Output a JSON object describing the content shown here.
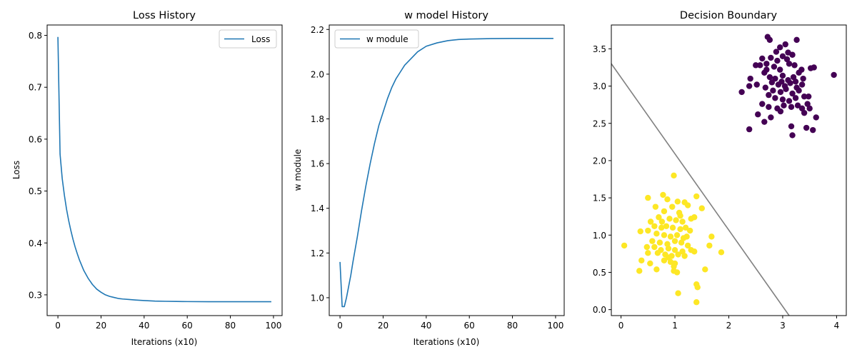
{
  "chart_data": [
    {
      "type": "line",
      "title": "Loss History",
      "xlabel": "Iterations (x10)",
      "ylabel": "Loss",
      "xlim": [
        -5,
        104
      ],
      "ylim": [
        0.26,
        0.82
      ],
      "xticks": [
        0,
        20,
        40,
        60,
        80,
        100
      ],
      "xtick_labels": [
        "0",
        "20",
        "40",
        "60",
        "80",
        "100"
      ],
      "yticks": [
        0.3,
        0.4,
        0.5,
        0.6,
        0.7,
        0.8
      ],
      "ytick_labels": [
        "0.3",
        "0.4",
        "0.5",
        "0.6",
        "0.7",
        "0.8"
      ],
      "grid": false,
      "legend_position": "upper right",
      "series": [
        {
          "name": "Loss",
          "color": "#1f77b4",
          "x": [
            0,
            1,
            2,
            3,
            4,
            5,
            6,
            7,
            8,
            9,
            10,
            12,
            14,
            16,
            18,
            20,
            22,
            24,
            26,
            28,
            30,
            33,
            36,
            40,
            45,
            50,
            55,
            60,
            70,
            80,
            90,
            99
          ],
          "y": [
            0.797,
            0.571,
            0.524,
            0.492,
            0.465,
            0.443,
            0.424,
            0.407,
            0.392,
            0.379,
            0.367,
            0.347,
            0.332,
            0.32,
            0.311,
            0.305,
            0.3,
            0.297,
            0.295,
            0.293,
            0.292,
            0.291,
            0.29,
            0.289,
            0.288,
            0.2875,
            0.2872,
            0.287,
            0.2868,
            0.2867,
            0.2867,
            0.2867
          ]
        }
      ]
    },
    {
      "type": "line",
      "title": "w model History",
      "xlabel": "Iterations (x10)",
      "ylabel": "w module",
      "xlim": [
        -5,
        104
      ],
      "ylim": [
        0.92,
        2.22
      ],
      "xticks": [
        0,
        20,
        40,
        60,
        80,
        100
      ],
      "xtick_labels": [
        "0",
        "20",
        "40",
        "60",
        "80",
        "100"
      ],
      "yticks": [
        1.0,
        1.2,
        1.4,
        1.6,
        1.8,
        2.0,
        2.2
      ],
      "ytick_labels": [
        "1.0",
        "1.2",
        "1.4",
        "1.6",
        "1.8",
        "2.0",
        "2.2"
      ],
      "grid": false,
      "legend_position": "upper left",
      "series": [
        {
          "name": "w module",
          "color": "#1f77b4",
          "x": [
            0,
            1,
            2,
            3,
            4,
            5,
            6,
            8,
            10,
            12,
            14,
            16,
            18,
            20,
            22,
            24,
            26,
            28,
            30,
            33,
            36,
            40,
            45,
            50,
            55,
            60,
            70,
            80,
            90,
            99
          ],
          "y": [
            1.16,
            0.96,
            0.96,
            1.0,
            1.05,
            1.1,
            1.16,
            1.27,
            1.39,
            1.5,
            1.6,
            1.69,
            1.77,
            1.83,
            1.89,
            1.94,
            1.98,
            2.01,
            2.04,
            2.07,
            2.1,
            2.125,
            2.14,
            2.15,
            2.155,
            2.157,
            2.159,
            2.16,
            2.16,
            2.16
          ]
        }
      ]
    },
    {
      "type": "scatter",
      "title": "Decision Boundary",
      "xlabel": "",
      "ylabel": "",
      "xlim": [
        -0.18,
        4.18
      ],
      "ylim": [
        -0.08,
        3.82
      ],
      "xticks": [
        0,
        1,
        2,
        3,
        4
      ],
      "xtick_labels": [
        "0",
        "1",
        "2",
        "3",
        "4"
      ],
      "yticks": [
        0.0,
        0.5,
        1.0,
        1.5,
        2.0,
        2.5,
        3.0,
        3.5
      ],
      "ytick_labels": [
        "0.0",
        "0.5",
        "1.0",
        "1.5",
        "2.0",
        "2.5",
        "3.0",
        "3.5"
      ],
      "grid": false,
      "boundary_line": {
        "color": "#808080",
        "x": [
          -0.18,
          3.12
        ],
        "y": [
          3.3,
          -0.08
        ]
      },
      "series": [
        {
          "name": "",
          "color": "#440154",
          "points": [
            [
              2.72,
              3.66
            ],
            [
              2.76,
              3.62
            ],
            [
              3.05,
              3.56
            ],
            [
              3.26,
              3.62
            ],
            [
              2.88,
              3.46
            ],
            [
              2.95,
              3.52
            ],
            [
              3.1,
              3.45
            ],
            [
              3.18,
              3.42
            ],
            [
              2.62,
              3.37
            ],
            [
              2.78,
              3.38
            ],
            [
              3.0,
              3.4
            ],
            [
              3.08,
              3.36
            ],
            [
              2.58,
              3.28
            ],
            [
              2.7,
              3.3
            ],
            [
              2.84,
              3.26
            ],
            [
              2.95,
              3.22
            ],
            [
              3.12,
              3.3
            ],
            [
              3.22,
              3.28
            ],
            [
              3.35,
              3.22
            ],
            [
              3.52,
              3.24
            ],
            [
              3.58,
              3.25
            ],
            [
              3.95,
              3.15
            ],
            [
              2.66,
              3.18
            ],
            [
              2.76,
              3.12
            ],
            [
              2.86,
              3.1
            ],
            [
              3.0,
              3.14
            ],
            [
              3.1,
              3.08
            ],
            [
              3.2,
              3.12
            ],
            [
              3.3,
              3.18
            ],
            [
              2.8,
              3.05
            ],
            [
              2.92,
              3.02
            ],
            [
              3.04,
              3.0
            ],
            [
              3.14,
              3.04
            ],
            [
              3.24,
              3.06
            ],
            [
              3.38,
              3.1
            ],
            [
              2.4,
              3.1
            ],
            [
              2.52,
              3.02
            ],
            [
              2.68,
              2.98
            ],
            [
              2.82,
              2.94
            ],
            [
              2.96,
              2.92
            ],
            [
              3.06,
              2.96
            ],
            [
              3.18,
              2.9
            ],
            [
              3.3,
              2.94
            ],
            [
              2.24,
              2.92
            ],
            [
              2.38,
              3.0
            ],
            [
              2.74,
              2.88
            ],
            [
              2.86,
              2.84
            ],
            [
              3.0,
              2.82
            ],
            [
              3.12,
              2.8
            ],
            [
              3.24,
              2.84
            ],
            [
              3.4,
              2.86
            ],
            [
              3.48,
              2.86
            ],
            [
              2.62,
              2.76
            ],
            [
              2.74,
              2.72
            ],
            [
              2.9,
              2.7
            ],
            [
              3.02,
              2.74
            ],
            [
              3.16,
              2.72
            ],
            [
              3.28,
              2.74
            ],
            [
              3.36,
              2.7
            ],
            [
              3.5,
              2.7
            ],
            [
              2.96,
              2.66
            ],
            [
              3.4,
              2.64
            ],
            [
              3.62,
              2.58
            ],
            [
              2.54,
              2.62
            ],
            [
              2.66,
              2.52
            ],
            [
              2.78,
              2.58
            ],
            [
              3.16,
              2.46
            ],
            [
              3.44,
              2.44
            ],
            [
              3.56,
              2.41
            ],
            [
              2.38,
              2.42
            ],
            [
              3.18,
              2.34
            ],
            [
              2.7,
              3.22
            ],
            [
              2.9,
              3.34
            ],
            [
              3.36,
              3.02
            ],
            [
              2.5,
              3.28
            ],
            [
              3.46,
              2.76
            ],
            [
              2.98,
              3.06
            ],
            [
              3.26,
              2.98
            ]
          ]
        },
        {
          "name": "",
          "color": "#fde725",
          "points": [
            [
              0.98,
              1.8
            ],
            [
              0.78,
              1.54
            ],
            [
              0.5,
              1.5
            ],
            [
              0.86,
              1.48
            ],
            [
              1.4,
              1.52
            ],
            [
              1.05,
              1.45
            ],
            [
              1.18,
              1.44
            ],
            [
              0.64,
              1.38
            ],
            [
              0.95,
              1.38
            ],
            [
              1.24,
              1.4
            ],
            [
              1.5,
              1.36
            ],
            [
              0.8,
              1.32
            ],
            [
              1.08,
              1.3
            ],
            [
              0.7,
              1.24
            ],
            [
              0.9,
              1.22
            ],
            [
              1.02,
              1.2
            ],
            [
              1.14,
              1.18
            ],
            [
              1.3,
              1.22
            ],
            [
              1.36,
              1.24
            ],
            [
              0.55,
              1.18
            ],
            [
              0.62,
              1.12
            ],
            [
              0.75,
              1.1
            ],
            [
              0.84,
              1.12
            ],
            [
              0.96,
              1.1
            ],
            [
              1.1,
              1.08
            ],
            [
              1.2,
              1.1
            ],
            [
              0.36,
              1.05
            ],
            [
              0.5,
              1.06
            ],
            [
              0.66,
              1.02
            ],
            [
              0.8,
              1.0
            ],
            [
              0.92,
              0.98
            ],
            [
              1.04,
              1.0
            ],
            [
              1.16,
              0.96
            ],
            [
              1.28,
              1.06
            ],
            [
              1.68,
              0.98
            ],
            [
              0.58,
              0.92
            ],
            [
              0.72,
              0.9
            ],
            [
              0.86,
              0.88
            ],
            [
              1.0,
              0.92
            ],
            [
              1.12,
              0.9
            ],
            [
              1.24,
              0.86
            ],
            [
              0.06,
              0.86
            ],
            [
              0.48,
              0.84
            ],
            [
              0.62,
              0.84
            ],
            [
              0.74,
              0.8
            ],
            [
              0.88,
              0.82
            ],
            [
              1.0,
              0.8
            ],
            [
              1.14,
              0.78
            ],
            [
              1.3,
              0.8
            ],
            [
              1.36,
              0.78
            ],
            [
              1.64,
              0.86
            ],
            [
              1.86,
              0.77
            ],
            [
              0.5,
              0.76
            ],
            [
              0.68,
              0.76
            ],
            [
              0.82,
              0.74
            ],
            [
              0.94,
              0.72
            ],
            [
              1.06,
              0.74
            ],
            [
              1.18,
              0.72
            ],
            [
              0.8,
              0.66
            ],
            [
              0.92,
              0.64
            ],
            [
              1.0,
              0.62
            ],
            [
              0.38,
              0.66
            ],
            [
              0.54,
              0.62
            ],
            [
              0.98,
              0.58
            ],
            [
              0.66,
              0.54
            ],
            [
              0.98,
              0.52
            ],
            [
              1.04,
              0.5
            ],
            [
              1.56,
              0.54
            ],
            [
              0.34,
              0.52
            ],
            [
              1.4,
              0.34
            ],
            [
              1.42,
              0.3
            ],
            [
              1.06,
              0.22
            ],
            [
              1.4,
              0.1
            ],
            [
              0.88,
              0.7
            ],
            [
              1.1,
              1.26
            ],
            [
              0.76,
              1.18
            ],
            [
              1.22,
              0.98
            ]
          ]
        }
      ]
    }
  ]
}
